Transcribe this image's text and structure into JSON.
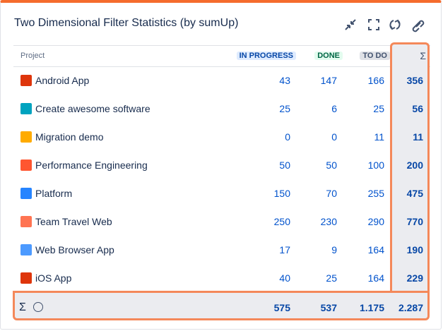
{
  "header": {
    "title": "Two Dimensional Filter Statistics (by sumUp)"
  },
  "table": {
    "columns": [
      "Project",
      "IN PROGRESS",
      "DONE",
      "TO DO",
      "Σ"
    ],
    "rows": [
      [
        "Android App",
        43,
        147,
        166,
        356
      ],
      [
        "Create awesome software",
        25,
        6,
        25,
        56
      ],
      [
        "Migration demo",
        0,
        0,
        11,
        11
      ],
      [
        "Performance Engineering",
        50,
        50,
        100,
        200
      ],
      [
        "Platform",
        150,
        70,
        255,
        475
      ],
      [
        "Team Travel Web",
        250,
        230,
        290,
        770
      ],
      [
        "Web Browser App",
        17,
        9,
        164,
        190
      ],
      [
        "iOS App",
        40,
        25,
        164,
        229
      ]
    ],
    "footer": [
      "Σ",
      "575",
      "537",
      "1.175",
      "2.287"
    ]
  }
}
